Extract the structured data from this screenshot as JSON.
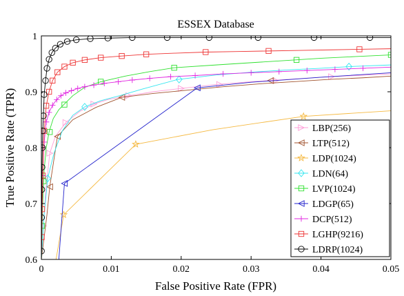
{
  "chart_data": {
    "type": "line",
    "title": "ESSEX Database",
    "xlabel": "False Positive Rate (FPR)",
    "ylabel": "True Positive Rate (TPR)",
    "xlim": [
      0,
      0.05
    ],
    "ylim": [
      0.6,
      1.0
    ],
    "xticks": [
      0,
      0.01,
      0.02,
      0.03,
      0.04,
      0.05
    ],
    "xtick_labels": [
      "0",
      "0.01",
      "0.02",
      "0.03",
      "0.04",
      "0.05"
    ],
    "yticks": [
      0.6,
      0.7,
      0.8,
      0.9,
      1.0
    ],
    "ytick_labels": [
      "0.6",
      "0.7",
      "0.8",
      "0.9",
      "1"
    ],
    "grid": false,
    "legend_position": "bottom-right",
    "series": [
      {
        "name": "LBP(256)",
        "color": "#ff9ed8",
        "marker": "triangle-right",
        "x": [
          0,
          0.0003,
          0.0006,
          0.0012,
          0.002,
          0.0035,
          0.0055,
          0.0075,
          0.0095,
          0.0125,
          0.016,
          0.02,
          0.025,
          0.03,
          0.035,
          0.04,
          0.045,
          0.05
        ],
        "y": [
          0.6,
          0.66,
          0.72,
          0.79,
          0.82,
          0.845,
          0.865,
          0.878,
          0.886,
          0.893,
          0.9,
          0.906,
          0.913,
          0.918,
          0.922,
          0.926,
          0.929,
          0.932
        ],
        "markers_x": [
          0.0003,
          0.0012,
          0.0035,
          0.0075,
          0.0125,
          0.02,
          0.0255,
          0.0335,
          0.0415
        ],
        "markers_y": [
          0.66,
          0.79,
          0.845,
          0.878,
          0.893,
          0.906,
          0.913,
          0.92,
          0.927
        ]
      },
      {
        "name": "LTP(512)",
        "color": "#a0522d",
        "marker": "triangle-left",
        "x": [
          0,
          0.0008,
          0.0012,
          0.0023,
          0.0045,
          0.0078,
          0.0115,
          0.016,
          0.021,
          0.026,
          0.031,
          0.036,
          0.041,
          0.046,
          0.05
        ],
        "y": [
          0.6,
          0.68,
          0.73,
          0.82,
          0.85,
          0.872,
          0.89,
          0.897,
          0.903,
          0.909,
          0.914,
          0.918,
          0.922,
          0.925,
          0.928
        ],
        "markers_x": [
          0.0012,
          0.0023,
          0.0115,
          0.0328
        ],
        "markers_y": [
          0.73,
          0.82,
          0.89,
          0.92
        ]
      },
      {
        "name": "LDP(1024)",
        "color": "#f5b941",
        "marker": "star",
        "x": [
          0.0021,
          0.0032,
          0.0135,
          0.0245,
          0.0375,
          0.05
        ],
        "y": [
          0.6,
          0.68,
          0.806,
          0.832,
          0.856,
          0.866
        ],
        "markers_x": [
          0.0032,
          0.0135,
          0.0375
        ],
        "markers_y": [
          0.68,
          0.806,
          0.856
        ]
      },
      {
        "name": "LDN(64)",
        "color": "#33e6f0",
        "marker": "diamond",
        "x": [
          0,
          0.0004,
          0.0009,
          0.0018,
          0.003,
          0.0045,
          0.0062,
          0.0085,
          0.0112,
          0.0145,
          0.0195,
          0.025,
          0.03,
          0.035,
          0.04,
          0.044,
          0.05
        ],
        "y": [
          0.6,
          0.68,
          0.745,
          0.79,
          0.83,
          0.858,
          0.873,
          0.884,
          0.893,
          0.905,
          0.922,
          0.93,
          0.935,
          0.939,
          0.942,
          0.945,
          0.948
        ],
        "markers_x": [
          0.0009,
          0.0062,
          0.0197,
          0.044
        ],
        "markers_y": [
          0.745,
          0.873,
          0.922,
          0.945
        ]
      },
      {
        "name": "LVP(1024)",
        "color": "#2ee02e",
        "marker": "square",
        "x": [
          0,
          0.0002,
          0.0004,
          0.0007,
          0.0011,
          0.0017,
          0.0025,
          0.0032,
          0.0045,
          0.0062,
          0.0085,
          0.012,
          0.0155,
          0.019,
          0.025,
          0.03,
          0.035,
          0.04,
          0.045,
          0.05
        ],
        "y": [
          0.6,
          0.7,
          0.76,
          0.8,
          0.828,
          0.852,
          0.868,
          0.877,
          0.893,
          0.908,
          0.918,
          0.928,
          0.936,
          0.943,
          0.948,
          0.952,
          0.956,
          0.96,
          0.963,
          0.966
        ],
        "markers_x": [
          0.0001,
          0.0003,
          0.0012,
          0.0033,
          0.0085,
          0.019,
          0.0365,
          0.05
        ],
        "markers_y": [
          0.66,
          0.74,
          0.828,
          0.877,
          0.918,
          0.943,
          0.957,
          0.966
        ]
      },
      {
        "name": "LDGP(65)",
        "color": "#2222cc",
        "marker": "triangle-left",
        "x": [
          0.0025,
          0.0033,
          0.0223,
          0.03,
          0.04,
          0.05
        ],
        "y": [
          0.6,
          0.736,
          0.907,
          0.917,
          0.926,
          0.934
        ],
        "markers_x": [
          0.0033,
          0.0223
        ],
        "markers_y": [
          0.736,
          0.907
        ]
      },
      {
        "name": "DCP(512)",
        "color": "#e024e0",
        "marker": "plus",
        "x": [
          0,
          0.0002,
          0.0004,
          0.0007,
          0.0011,
          0.0016,
          0.0022,
          0.0028,
          0.0035,
          0.0043,
          0.0052,
          0.0062,
          0.0075,
          0.009,
          0.011,
          0.013,
          0.0155,
          0.0185,
          0.022,
          0.026,
          0.03,
          0.034,
          0.038,
          0.042,
          0.046,
          0.05
        ],
        "y": [
          0.6,
          0.75,
          0.81,
          0.846,
          0.863,
          0.876,
          0.886,
          0.893,
          0.898,
          0.902,
          0.906,
          0.909,
          0.912,
          0.915,
          0.918,
          0.921,
          0.924,
          0.927,
          0.929,
          0.932,
          0.934,
          0.936,
          0.938,
          0.94,
          0.942,
          0.944
        ],
        "markers_x": [
          0.0002,
          0.0004,
          0.0007,
          0.0011,
          0.0016,
          0.0022,
          0.0028,
          0.0035,
          0.0043,
          0.0052,
          0.0062,
          0.0075,
          0.009,
          0.011,
          0.013,
          0.0155,
          0.0185,
          0.022,
          0.026,
          0.03,
          0.034,
          0.038,
          0.042,
          0.046
        ],
        "markers_y": [
          0.75,
          0.81,
          0.846,
          0.863,
          0.876,
          0.886,
          0.893,
          0.898,
          0.902,
          0.906,
          0.909,
          0.912,
          0.915,
          0.918,
          0.921,
          0.924,
          0.927,
          0.929,
          0.932,
          0.934,
          0.936,
          0.938,
          0.94,
          0.942
        ]
      },
      {
        "name": "LGHP(9216)",
        "color": "#ee3333",
        "marker": "square",
        "x": [
          0,
          5e-05,
          0.0001,
          0.0002,
          0.0004,
          0.0007,
          0.0011,
          0.0016,
          0.0023,
          0.0033,
          0.0045,
          0.0062,
          0.0085,
          0.0115,
          0.015,
          0.019,
          0.0235,
          0.028,
          0.0325,
          0.037,
          0.0415,
          0.0455,
          0.05
        ],
        "y": [
          0.6,
          0.64,
          0.69,
          0.75,
          0.83,
          0.875,
          0.9,
          0.92,
          0.935,
          0.945,
          0.952,
          0.957,
          0.961,
          0.964,
          0.967,
          0.969,
          0.971,
          0.972,
          0.973,
          0.974,
          0.975,
          0.976,
          0.977
        ],
        "markers_x": [
          5e-05,
          0.0001,
          0.0002,
          0.0004,
          0.0007,
          0.0011,
          0.0016,
          0.0023,
          0.0033,
          0.0045,
          0.0062,
          0.0085,
          0.0115,
          0.015,
          0.0235,
          0.0325,
          0.0455
        ],
        "markers_y": [
          0.64,
          0.69,
          0.75,
          0.83,
          0.875,
          0.9,
          0.92,
          0.935,
          0.945,
          0.952,
          0.957,
          0.961,
          0.964,
          0.967,
          0.971,
          0.973,
          0.976
        ]
      },
      {
        "name": "LDRP(1024)",
        "color": "#000000",
        "marker": "circle",
        "x": [
          0,
          2e-05,
          4e-05,
          7e-05,
          0.0001,
          0.00015,
          0.0002,
          0.0003,
          0.0004,
          0.0006,
          0.0008,
          0.0011,
          0.0015,
          0.002,
          0.0027,
          0.0037,
          0.005,
          0.007,
          0.0095,
          0.013,
          0.018,
          0.024,
          0.031,
          0.039,
          0.047,
          0.05
        ],
        "y": [
          0.6,
          0.615,
          0.675,
          0.725,
          0.765,
          0.8,
          0.83,
          0.857,
          0.895,
          0.92,
          0.942,
          0.958,
          0.97,
          0.978,
          0.985,
          0.99,
          0.993,
          0.995,
          0.996,
          0.997,
          0.997,
          0.997,
          0.997,
          0.997,
          0.997,
          0.997
        ],
        "markers_x": [
          2e-05,
          4e-05,
          7e-05,
          0.0001,
          0.00015,
          0.0002,
          0.0003,
          0.0004,
          0.0006,
          0.0008,
          0.0011,
          0.0015,
          0.002,
          0.0027,
          0.0037,
          0.005,
          0.007,
          0.0095,
          0.013,
          0.018,
          0.024,
          0.031,
          0.039,
          0.047
        ],
        "markers_y": [
          0.615,
          0.675,
          0.725,
          0.765,
          0.8,
          0.83,
          0.857,
          0.895,
          0.92,
          0.942,
          0.958,
          0.97,
          0.978,
          0.985,
          0.99,
          0.993,
          0.995,
          0.996,
          0.997,
          0.997,
          0.997,
          0.997,
          0.997,
          0.997
        ]
      }
    ]
  }
}
